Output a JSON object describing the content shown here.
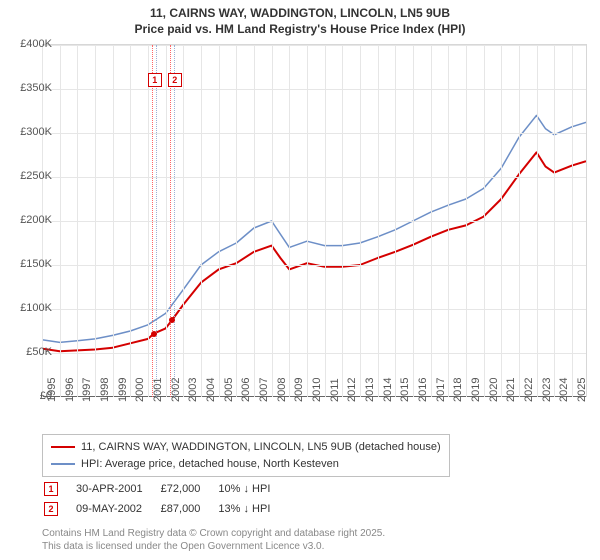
{
  "title": {
    "line1": "11, CAIRNS WAY, WADDINGTON, LINCOLN, LN5 9UB",
    "line2": "Price paid vs. HM Land Registry's House Price Index (HPI)",
    "fontsize": 12
  },
  "chart": {
    "type": "line",
    "background": "#ffffff",
    "grid_color": "#e6e6e6",
    "axis_color": "#666666",
    "xlim": [
      1995,
      2025.8
    ],
    "ylim": [
      0,
      400000
    ],
    "ytick_step": 50000,
    "yticks": [
      "£0",
      "£50K",
      "£100K",
      "£150K",
      "£200K",
      "£250K",
      "£300K",
      "£350K",
      "£400K"
    ],
    "xticks": [
      1995,
      1996,
      1997,
      1998,
      1999,
      2000,
      2001,
      2002,
      2003,
      2004,
      2005,
      2006,
      2007,
      2008,
      2009,
      2010,
      2011,
      2012,
      2013,
      2014,
      2015,
      2016,
      2017,
      2018,
      2019,
      2020,
      2021,
      2022,
      2023,
      2024,
      2025
    ],
    "label_fontsize": 11,
    "label_color": "#555555",
    "series": [
      {
        "name": "11, CAIRNS WAY, WADDINGTON, LINCOLN, LN5 9UB (detached house)",
        "color": "#d40000",
        "line_width": 2,
        "data": [
          [
            1995,
            55000
          ],
          [
            1996,
            52000
          ],
          [
            1997,
            53000
          ],
          [
            1998,
            54000
          ],
          [
            1999,
            56000
          ],
          [
            2000,
            61000
          ],
          [
            2001,
            66000
          ],
          [
            2001.33,
            72000
          ],
          [
            2002,
            78000
          ],
          [
            2002.35,
            87000
          ],
          [
            2003,
            105000
          ],
          [
            2004,
            130000
          ],
          [
            2005,
            145000
          ],
          [
            2006,
            152000
          ],
          [
            2007,
            165000
          ],
          [
            2008,
            172000
          ],
          [
            2008.5,
            158000
          ],
          [
            2009,
            145000
          ],
          [
            2010,
            152000
          ],
          [
            2011,
            148000
          ],
          [
            2012,
            148000
          ],
          [
            2013,
            150000
          ],
          [
            2014,
            158000
          ],
          [
            2015,
            165000
          ],
          [
            2016,
            173000
          ],
          [
            2017,
            182000
          ],
          [
            2018,
            190000
          ],
          [
            2019,
            195000
          ],
          [
            2020,
            205000
          ],
          [
            2021,
            225000
          ],
          [
            2022,
            253000
          ],
          [
            2023,
            278000
          ],
          [
            2023.5,
            262000
          ],
          [
            2024,
            255000
          ],
          [
            2025,
            263000
          ],
          [
            2025.8,
            268000
          ]
        ]
      },
      {
        "name": "HPI: Average price, detached house, North Kesteven",
        "color": "#6d8fc7",
        "line_width": 1.5,
        "data": [
          [
            1995,
            65000
          ],
          [
            1996,
            62000
          ],
          [
            1997,
            64000
          ],
          [
            1998,
            66000
          ],
          [
            1999,
            70000
          ],
          [
            2000,
            75000
          ],
          [
            2001,
            82000
          ],
          [
            2002,
            95000
          ],
          [
            2003,
            122000
          ],
          [
            2004,
            150000
          ],
          [
            2005,
            165000
          ],
          [
            2006,
            175000
          ],
          [
            2007,
            192000
          ],
          [
            2008,
            200000
          ],
          [
            2008.5,
            185000
          ],
          [
            2009,
            170000
          ],
          [
            2010,
            177000
          ],
          [
            2011,
            172000
          ],
          [
            2012,
            172000
          ],
          [
            2013,
            175000
          ],
          [
            2014,
            182000
          ],
          [
            2015,
            190000
          ],
          [
            2016,
            200000
          ],
          [
            2017,
            210000
          ],
          [
            2018,
            218000
          ],
          [
            2019,
            225000
          ],
          [
            2020,
            237000
          ],
          [
            2021,
            260000
          ],
          [
            2022,
            295000
          ],
          [
            2023,
            320000
          ],
          [
            2023.5,
            305000
          ],
          [
            2024,
            298000
          ],
          [
            2025,
            307000
          ],
          [
            2025.8,
            312000
          ]
        ]
      }
    ],
    "markers": [
      {
        "n": 1,
        "x": 2001.33,
        "y": 72000,
        "color": "#d40000"
      },
      {
        "n": 2,
        "x": 2002.35,
        "y": 87000,
        "color": "#d40000"
      }
    ],
    "marker_vline_colors": [
      "#ff6666",
      "#9bb1d6"
    ]
  },
  "legend": {
    "border_color": "#c0c0c0",
    "fontsize": 11
  },
  "sales": [
    {
      "n": "1",
      "marker_color": "#d40000",
      "date": "30-APR-2001",
      "price": "£72,000",
      "delta": "10% ↓ HPI"
    },
    {
      "n": "2",
      "marker_color": "#d40000",
      "date": "09-MAY-2002",
      "price": "£87,000",
      "delta": "13% ↓ HPI"
    }
  ],
  "footnote": {
    "line1": "Contains HM Land Registry data © Crown copyright and database right 2025.",
    "line2": "This data is licensed under the Open Government Licence v3.0.",
    "color": "#888888",
    "fontsize": 10
  }
}
